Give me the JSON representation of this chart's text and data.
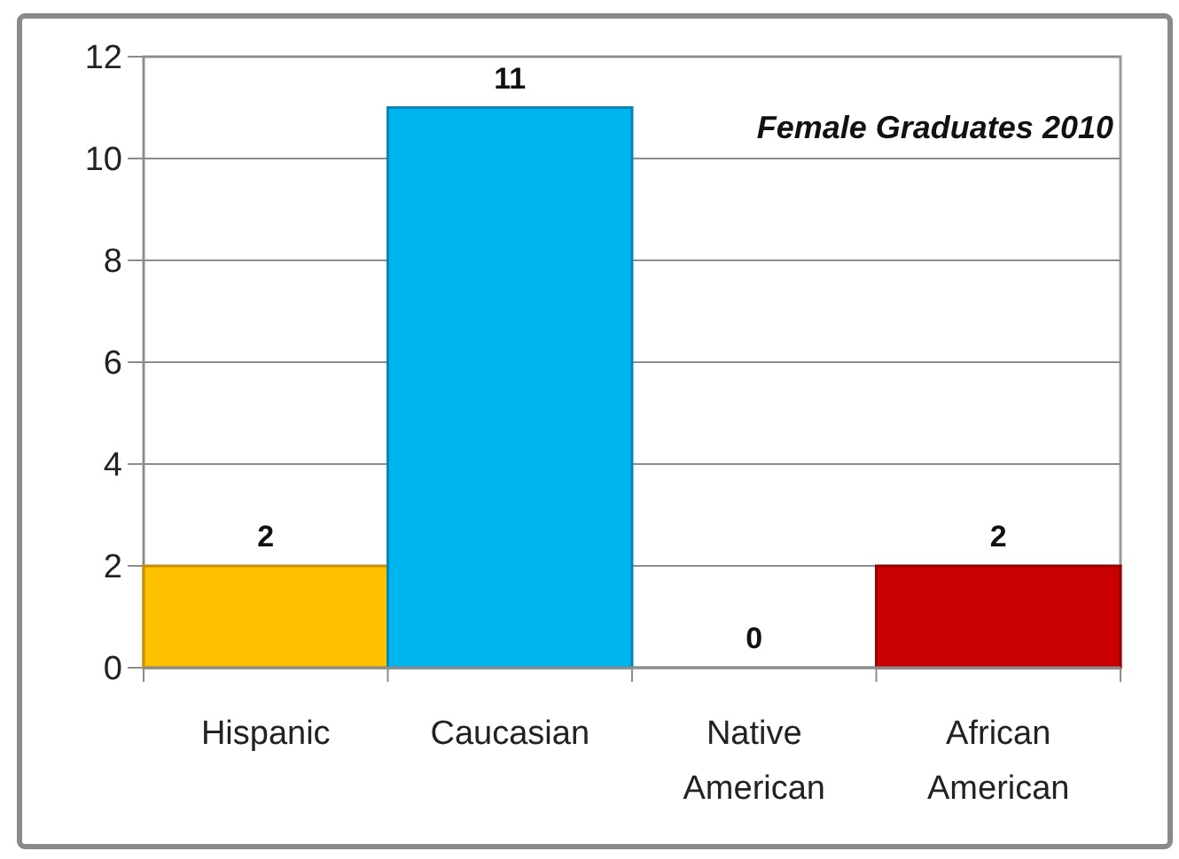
{
  "chart_data": {
    "type": "bar",
    "title": "Female Graduates 2010",
    "categories": [
      "Hispanic",
      "Caucasian",
      "Native American",
      "African American"
    ],
    "values": [
      2,
      11,
      0,
      2
    ],
    "colors": [
      "#ffc000",
      "#00b4f0",
      null,
      "#c80000"
    ],
    "ylim": [
      0,
      12
    ],
    "yticks": [
      0,
      2,
      4,
      6,
      8,
      10,
      12
    ],
    "grid": "y",
    "data_labels": true
  }
}
